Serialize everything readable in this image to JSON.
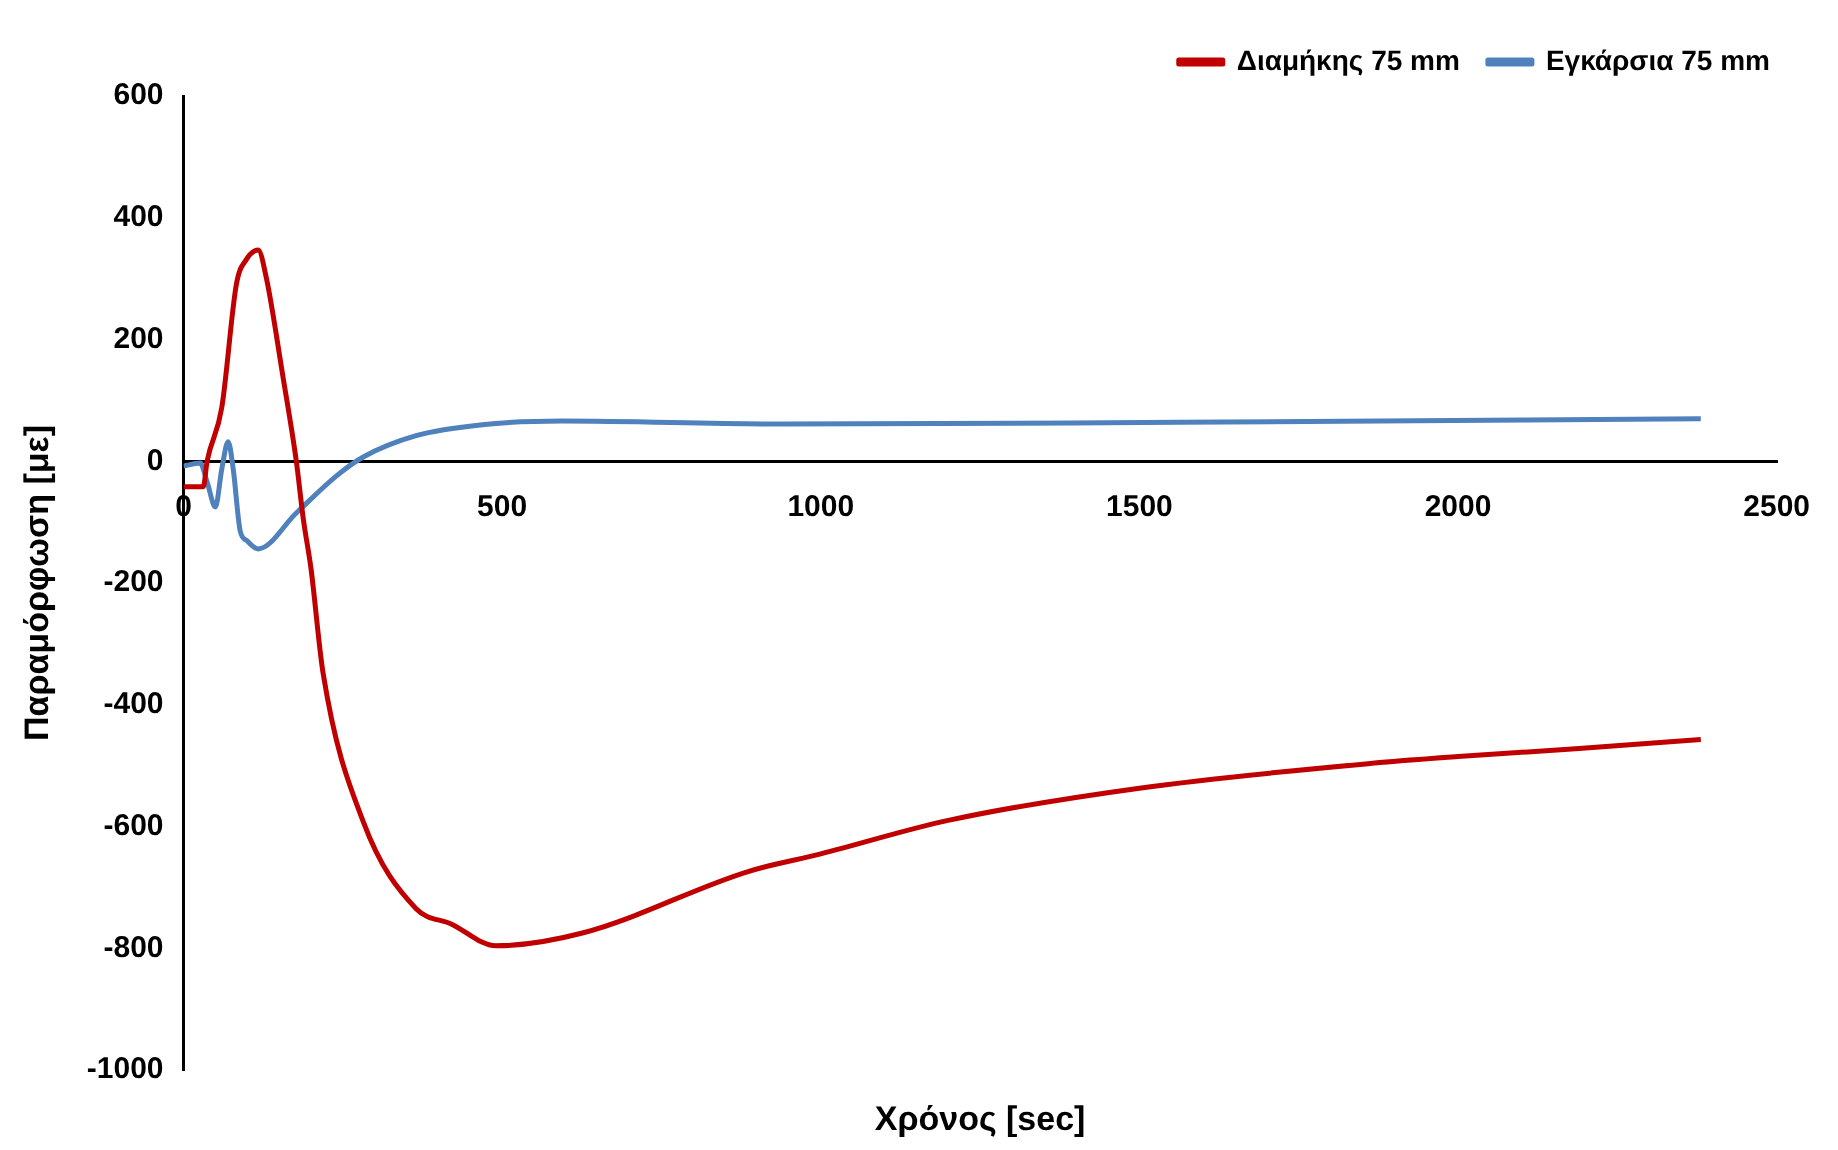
{
  "chart_data": {
    "type": "line",
    "xlabel": "Χρόνος [sec]",
    "ylabel": "Παραμόρφωση [με]",
    "xlim": [
      0,
      2500
    ],
    "xticks": [
      0,
      500,
      1000,
      1500,
      2000,
      2500
    ],
    "ylim": [
      -1000,
      600
    ],
    "yticks": [
      -1000,
      -800,
      -600,
      -400,
      -200,
      0,
      200,
      400,
      600
    ],
    "grid": false,
    "legend": "top right",
    "marker": "none",
    "line_style": "solid",
    "series": [
      {
        "name": "Διαμήκης 75 mm",
        "color": "#c00000",
        "x": [
          0,
          31,
          37,
          60,
          83,
          99,
          117,
          130,
          156,
          177,
          188,
          200,
          219,
          282,
          365,
          420,
          490,
          626,
          886,
          1000,
          1200,
          1500,
          1877,
          2000,
          2190,
          2381
        ],
        "values": [
          -42,
          -42,
          0,
          88,
          291,
          332,
          347,
          301,
          139,
          0,
          -95,
          -176,
          -348,
          -592,
          -735,
          -760,
          -796,
          -775,
          -674,
          -645,
          -590,
          -537,
          -495,
          -485,
          -472,
          -457
        ]
      },
      {
        "name": "Εγκάρσια 75 mm",
        "color": "#4f81bd",
        "x": [
          0,
          26,
          37,
          50,
          60,
          70,
          78,
          89,
          99,
          117,
          177,
          240,
          282,
          365,
          469,
          594,
          939,
          1564,
          2381
        ],
        "values": [
          -8,
          -3,
          -34,
          -75,
          -13,
          32,
          -13,
          -115,
          -130,
          -144,
          -85,
          -24,
          7,
          42,
          60,
          66,
          61,
          64,
          70
        ]
      }
    ]
  }
}
